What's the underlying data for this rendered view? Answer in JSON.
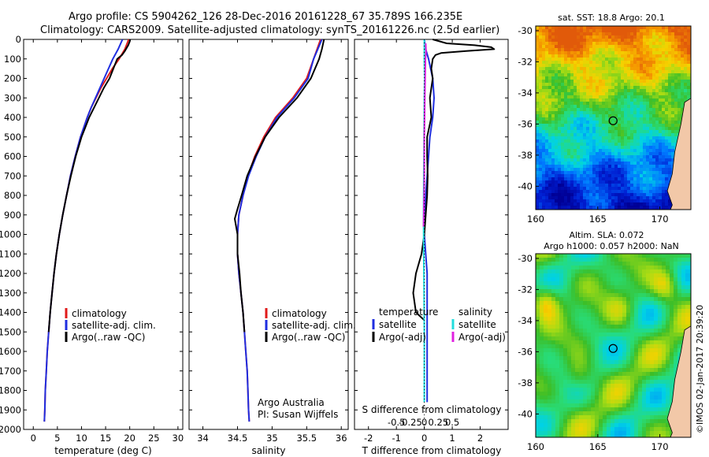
{
  "title": {
    "line1": "Argo profile: CS 5904262_126 28-Dec-2016 20161228_67 35.789S 166.235E",
    "line2": "Climatology: CARS2009. Satellite-adjusted climatology: synTS_20161226.nc (2.5d earlier)"
  },
  "colors": {
    "climatology": "#e01a1a",
    "satellite": "#1f2ee0",
    "argo": "#000000",
    "sal_satellite": "#22dddd",
    "sal_argo": "#e020e0"
  },
  "legend": {
    "climatology": "climatology",
    "satellite": "satellite-adj. clim.",
    "argo": "Argo(..raw -QC)"
  },
  "panel3": {
    "temperature_header": "temperature",
    "salinity_header": "salinity",
    "satellite": "satellite",
    "argo": "Argo(-adj)",
    "s_label": "S difference from climatology",
    "t_label": "T difference from climatology"
  },
  "credit": {
    "line1": "Argo Australia",
    "line2": "PI: Susan Wijffels"
  },
  "sst_map": {
    "title": "sat. SST: 18.8 Argo: 20.1",
    "lon_ticks": [
      "160",
      "165",
      "170"
    ],
    "lat_ticks": [
      "-30",
      "-32",
      "-34",
      "-36",
      "-38",
      "-40"
    ],
    "float_lon": 166.235,
    "float_lat": -35.789
  },
  "sla_map": {
    "title1": "Altim. SLA: 0.072",
    "title2": "Argo h1000: 0.057 h2000: NaN",
    "lon_ticks": [
      "160",
      "165",
      "170"
    ],
    "lat_ticks": [
      "-30",
      "-32",
      "-34",
      "-36",
      "-38",
      "-40"
    ],
    "float_lon": 166.235,
    "float_lat": -35.789
  },
  "stamp": "©IMOS 02-Jan-2017 20:39:20",
  "chart_data": [
    {
      "type": "line",
      "xlabel": "temperature (deg C)",
      "ylabel": "",
      "xlim": [
        -2,
        31
      ],
      "ylim": [
        2000,
        0
      ],
      "x_ticks": [
        0,
        5,
        10,
        15,
        20,
        25,
        30
      ],
      "y_ticks": [
        0,
        100,
        200,
        300,
        400,
        500,
        600,
        700,
        800,
        900,
        1000,
        1100,
        1200,
        1300,
        1400,
        1500,
        1600,
        1700,
        1800,
        1900,
        2000
      ],
      "series": [
        {
          "name": "climatology",
          "color": "#e01a1a",
          "points": [
            [
              19.8,
              0
            ],
            [
              19.0,
              50
            ],
            [
              17.8,
              100
            ],
            [
              16.4,
              150
            ],
            [
              15.2,
              200
            ],
            [
              14.0,
              250
            ],
            [
              13.0,
              300
            ],
            [
              12.0,
              350
            ],
            [
              11.2,
              400
            ],
            [
              10.5,
              450
            ],
            [
              9.8,
              500
            ],
            [
              8.7,
              600
            ],
            [
              7.7,
              700
            ],
            [
              6.9,
              800
            ],
            [
              6.1,
              900
            ],
            [
              5.4,
              1000
            ],
            [
              4.8,
              1100
            ],
            [
              4.3,
              1200
            ],
            [
              3.9,
              1300
            ],
            [
              3.5,
              1400
            ],
            [
              3.2,
              1500
            ],
            [
              2.9,
              1600
            ],
            [
              2.7,
              1700
            ],
            [
              2.5,
              1800
            ],
            [
              2.4,
              1900
            ],
            [
              2.3,
              1960
            ]
          ]
        },
        {
          "name": "satellite-adj. clim.",
          "color": "#1f2ee0",
          "points": [
            [
              18.5,
              0
            ],
            [
              17.6,
              50
            ],
            [
              16.5,
              100
            ],
            [
              15.6,
              150
            ],
            [
              14.7,
              200
            ],
            [
              13.8,
              250
            ],
            [
              12.9,
              300
            ],
            [
              12.0,
              350
            ],
            [
              11.2,
              400
            ],
            [
              10.5,
              450
            ],
            [
              9.8,
              500
            ],
            [
              8.7,
              600
            ],
            [
              7.7,
              700
            ],
            [
              6.9,
              800
            ],
            [
              6.1,
              900
            ],
            [
              5.4,
              1000
            ],
            [
              4.8,
              1100
            ],
            [
              4.3,
              1200
            ],
            [
              3.9,
              1300
            ],
            [
              3.5,
              1400
            ],
            [
              3.2,
              1500
            ],
            [
              2.9,
              1600
            ],
            [
              2.7,
              1700
            ],
            [
              2.5,
              1800
            ],
            [
              2.4,
              1900
            ],
            [
              2.3,
              1960
            ]
          ]
        },
        {
          "name": "Argo(..raw -QC)",
          "color": "#000000",
          "points": [
            [
              20.1,
              0
            ],
            [
              20.0,
              10
            ],
            [
              19.7,
              30
            ],
            [
              19.0,
              60
            ],
            [
              18.4,
              80
            ],
            [
              17.4,
              100
            ],
            [
              16.6,
              150
            ],
            [
              15.8,
              200
            ],
            [
              14.6,
              250
            ],
            [
              13.6,
              300
            ],
            [
              12.6,
              350
            ],
            [
              11.6,
              400
            ],
            [
              10.8,
              450
            ],
            [
              10.0,
              500
            ],
            [
              8.8,
              600
            ],
            [
              7.8,
              700
            ],
            [
              6.9,
              800
            ],
            [
              6.1,
              900
            ],
            [
              5.4,
              1000
            ],
            [
              4.8,
              1100
            ],
            [
              4.3,
              1200
            ],
            [
              3.9,
              1300
            ],
            [
              3.5,
              1400
            ],
            [
              3.2,
              1500
            ]
          ]
        }
      ]
    },
    {
      "type": "line",
      "xlabel": "salinity",
      "ylabel": "",
      "xlim": [
        33.8,
        36.1
      ],
      "ylim": [
        2000,
        0
      ],
      "x_ticks": [
        34,
        34.5,
        35,
        35.5,
        36
      ],
      "series": [
        {
          "name": "climatology",
          "color": "#e01a1a",
          "points": [
            [
              35.7,
              0
            ],
            [
              35.65,
              50
            ],
            [
              35.6,
              100
            ],
            [
              35.5,
              200
            ],
            [
              35.3,
              300
            ],
            [
              35.05,
              400
            ],
            [
              34.88,
              500
            ],
            [
              34.75,
              600
            ],
            [
              34.65,
              700
            ],
            [
              34.58,
              800
            ],
            [
              34.52,
              900
            ],
            [
              34.5,
              1000
            ],
            [
              34.5,
              1100
            ],
            [
              34.52,
              1200
            ],
            [
              34.55,
              1300
            ],
            [
              34.58,
              1400
            ],
            [
              34.6,
              1500
            ],
            [
              34.62,
              1600
            ],
            [
              34.64,
              1700
            ],
            [
              34.65,
              1800
            ],
            [
              34.66,
              1900
            ],
            [
              34.67,
              1960
            ]
          ]
        },
        {
          "name": "satellite-adj. clim.",
          "color": "#1f2ee0",
          "points": [
            [
              35.72,
              0
            ],
            [
              35.66,
              50
            ],
            [
              35.6,
              100
            ],
            [
              35.52,
              200
            ],
            [
              35.32,
              300
            ],
            [
              35.07,
              400
            ],
            [
              34.9,
              500
            ],
            [
              34.77,
              600
            ],
            [
              34.66,
              700
            ],
            [
              34.58,
              800
            ],
            [
              34.52,
              900
            ],
            [
              34.5,
              1000
            ],
            [
              34.5,
              1100
            ],
            [
              34.52,
              1200
            ],
            [
              34.55,
              1300
            ],
            [
              34.58,
              1400
            ],
            [
              34.6,
              1500
            ],
            [
              34.62,
              1600
            ],
            [
              34.64,
              1700
            ],
            [
              34.65,
              1800
            ],
            [
              34.66,
              1900
            ],
            [
              34.67,
              1960
            ]
          ]
        },
        {
          "name": "Argo(..raw -QC)",
          "color": "#000000",
          "points": [
            [
              35.75,
              0
            ],
            [
              35.72,
              50
            ],
            [
              35.68,
              100
            ],
            [
              35.56,
              200
            ],
            [
              35.36,
              300
            ],
            [
              35.1,
              400
            ],
            [
              34.9,
              500
            ],
            [
              34.76,
              600
            ],
            [
              34.64,
              700
            ],
            [
              34.56,
              800
            ],
            [
              34.5,
              870
            ],
            [
              34.46,
              920
            ],
            [
              34.5,
              1000
            ],
            [
              34.5,
              1100
            ],
            [
              34.53,
              1200
            ],
            [
              34.55,
              1300
            ],
            [
              34.58,
              1400
            ],
            [
              34.6,
              1500
            ]
          ]
        }
      ]
    },
    {
      "type": "line",
      "xlabel": "T difference from climatology",
      "s_label": "S difference from climatology",
      "xlim": [
        -2.5,
        3.0
      ],
      "ylim": [
        2000,
        0
      ],
      "x_ticks": [
        -2,
        -1,
        0,
        1,
        2
      ],
      "s_ticks": [
        "-0.5",
        "-0.25",
        "0",
        "0.25",
        "0.5"
      ],
      "series": [
        {
          "name": "temperature satellite",
          "color": "#1f2ee0",
          "points": [
            [
              0.0,
              0
            ],
            [
              0.05,
              50
            ],
            [
              0.15,
              100
            ],
            [
              0.3,
              200
            ],
            [
              0.35,
              300
            ],
            [
              0.3,
              400
            ],
            [
              0.2,
              500
            ],
            [
              0.15,
              600
            ],
            [
              0.1,
              700
            ],
            [
              0.05,
              800
            ],
            [
              0.0,
              900
            ],
            [
              0.0,
              1000
            ],
            [
              0.05,
              1100
            ],
            [
              0.1,
              1200
            ],
            [
              0.1,
              1400
            ],
            [
              0.1,
              1600
            ],
            [
              0.1,
              1800
            ],
            [
              0.1,
              1860
            ]
          ]
        },
        {
          "name": "temperature Argo(-adj)",
          "color": "#000000",
          "points": [
            [
              0.3,
              0
            ],
            [
              0.8,
              20
            ],
            [
              1.8,
              30
            ],
            [
              2.4,
              40
            ],
            [
              2.5,
              50
            ],
            [
              1.5,
              60
            ],
            [
              0.6,
              70
            ],
            [
              0.4,
              80
            ],
            [
              0.3,
              100
            ],
            [
              0.25,
              150
            ],
            [
              0.3,
              200
            ],
            [
              0.2,
              300
            ],
            [
              0.25,
              400
            ],
            [
              0.1,
              500
            ],
            [
              0.1,
              600
            ],
            [
              0.12,
              700
            ],
            [
              0.1,
              800
            ],
            [
              0.05,
              900
            ],
            [
              0.0,
              1000
            ],
            [
              -0.1,
              1100
            ],
            [
              -0.3,
              1200
            ],
            [
              -0.4,
              1300
            ],
            [
              -0.3,
              1400
            ],
            [
              0.0,
              1440
            ]
          ]
        },
        {
          "name": "salinity satellite",
          "color": "#22dddd",
          "points": [
            [
              0.0,
              0
            ],
            [
              0.0,
              100
            ],
            [
              0.01,
              200
            ],
            [
              0.0,
              300
            ],
            [
              -0.01,
              500
            ],
            [
              -0.02,
              700
            ],
            [
              -0.03,
              900
            ],
            [
              -0.02,
              1100
            ],
            [
              -0.01,
              1300
            ],
            [
              0.0,
              1500
            ],
            [
              0.0,
              1700
            ],
            [
              0.0,
              1860
            ]
          ]
        },
        {
          "name": "salinity Argo(-adj)",
          "color": "#e020e0",
          "points": [
            [
              0.05,
              20
            ],
            [
              0.06,
              60
            ],
            [
              0.04,
              100
            ],
            [
              0.03,
              200
            ],
            [
              0.02,
              300
            ],
            [
              0.01,
              400
            ],
            [
              0.0,
              500
            ],
            [
              0.0,
              600
            ],
            [
              0.0,
              700
            ],
            [
              -0.01,
              800
            ],
            [
              -0.02,
              900
            ],
            [
              -0.03,
              960
            ]
          ]
        }
      ]
    },
    {
      "type": "heatmap",
      "title": "sat. SST: 18.8 Argo: 20.1",
      "xlim": [
        160,
        172.5
      ],
      "ylim": [
        -41.5,
        -29.7
      ],
      "float_position": [
        166.235,
        -35.789
      ]
    },
    {
      "type": "heatmap",
      "title": "Altim. SLA: 0.072 / Argo h1000: 0.057 h2000: NaN",
      "xlim": [
        160,
        172.5
      ],
      "ylim": [
        -41.5,
        -29.7
      ],
      "float_position": [
        166.235,
        -35.789
      ]
    }
  ]
}
